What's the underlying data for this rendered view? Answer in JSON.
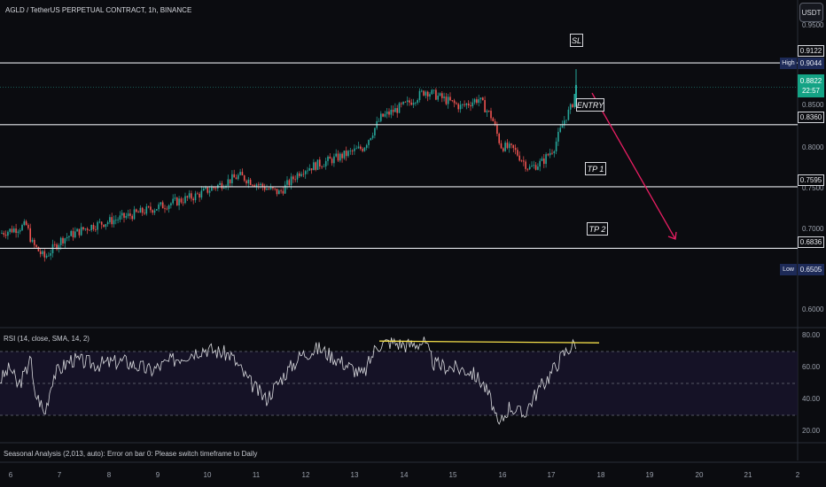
{
  "header": {
    "title": "AGLD / TetherUS PERPETUAL CONTRACT, 1h, BINANCE",
    "currency_button": "USDT"
  },
  "annotations": {
    "sl": "SL",
    "entry": "ENTRY",
    "tp1": "TP 1",
    "tp2": "TP 2"
  },
  "price_axis": {
    "ticks": [
      "0.9500",
      "0.8500",
      "0.8000",
      "0.7500",
      "0.7000",
      "0.6000"
    ],
    "levels": {
      "sl": "0.9122",
      "entry": "0.8360",
      "tp1": "0.7595",
      "tp2": "0.6836"
    },
    "current_price": "0.8822",
    "countdown": "22:57",
    "high_label": "High",
    "high_value": "0.9044",
    "low_label": "Low",
    "low_value": "0.6505"
  },
  "rsi_panel": {
    "title": "RSI (14, close, SMA, 14, 2)",
    "ticks": [
      "80.00",
      "60.00",
      "40.00",
      "20.00"
    ]
  },
  "seasonal_message": "Seasonal Analysis (2,013, auto): Error on bar 0: Please switch timeframe to Daily",
  "time_axis": {
    "ticks": [
      "6",
      "7",
      "8",
      "9",
      "10",
      "11",
      "12",
      "13",
      "14",
      "15",
      "16",
      "17",
      "18",
      "19",
      "20",
      "21",
      "2"
    ]
  },
  "colors": {
    "background": "#0b0c10",
    "up": "#26a69a",
    "down": "#ef5350",
    "level_line": "#e4e6ea",
    "projection_arrow": "#e91e63",
    "rsi_line": "#d8d9dd",
    "resistance_line": "#f5e04a",
    "rsi_band": "#1a1630"
  },
  "chart_data": {
    "type": "candlestick",
    "x": [
      "6",
      "7",
      "8",
      "9",
      "10",
      "11",
      "12",
      "13",
      "14",
      "15",
      "16",
      "17"
    ],
    "close": [
      0.708,
      0.695,
      0.715,
      0.728,
      0.751,
      0.775,
      0.761,
      0.8,
      0.855,
      0.855,
      0.795,
      0.878
    ],
    "high": 0.9044,
    "low": 0.6505,
    "levels": {
      "stop_loss": 0.9122,
      "entry": 0.836,
      "take_profit_1": 0.7595,
      "take_profit_2": 0.6836
    },
    "current": 0.8822,
    "rsi": {
      "params": "14, close, SMA, 14, 2",
      "ylim": [
        15,
        82
      ],
      "overbought": 70,
      "middle": 50,
      "oversold": 30,
      "resistance": 76,
      "last": 72
    },
    "ylim": [
      0.59,
      0.96
    ]
  }
}
